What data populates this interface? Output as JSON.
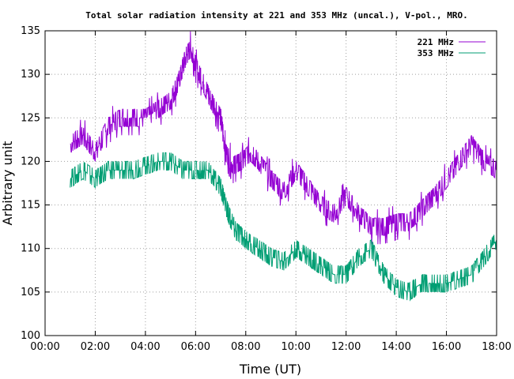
{
  "chart_data": {
    "type": "line",
    "title": "Total solar radiation intensity at 221 and 353 MHz (uncal.), V-pol., MRO.",
    "xlabel": "Time (UT)",
    "ylabel": "Arbitrary unit",
    "xlim": [
      0,
      18
    ],
    "ylim": [
      100,
      135
    ],
    "x_ticks": [
      "00:00",
      "02:00",
      "04:00",
      "06:00",
      "08:00",
      "10:00",
      "12:00",
      "14:00",
      "16:00",
      "18:00"
    ],
    "y_ticks": [
      100,
      105,
      110,
      115,
      120,
      125,
      130,
      135
    ],
    "grid": true,
    "legend_position": "top-right",
    "series": [
      {
        "name": "221 MHz",
        "color": "#9400d3",
        "x": [
          1.0,
          1.5,
          2.0,
          2.5,
          3.0,
          3.5,
          4.0,
          4.5,
          5.0,
          5.3,
          5.6,
          5.8,
          6.0,
          6.3,
          6.6,
          7.0,
          7.2,
          7.5,
          7.8,
          8.2,
          8.5,
          9.0,
          9.5,
          10.0,
          10.5,
          11.0,
          11.5,
          12.0,
          12.5,
          13.0,
          13.5,
          14.0,
          14.5,
          15.0,
          15.5,
          16.0,
          16.5,
          17.0,
          17.5,
          18.0
        ],
        "y": [
          122,
          123,
          121,
          124,
          125,
          125,
          125,
          126,
          127,
          129,
          132,
          133,
          131,
          129,
          127,
          125,
          121,
          119.5,
          120,
          121,
          120,
          118,
          116.5,
          119,
          117,
          115,
          114,
          116,
          114,
          112.5,
          112.5,
          113,
          113,
          114.5,
          116,
          118,
          120,
          122,
          120,
          119
        ]
      },
      {
        "name": "353 MHz",
        "color": "#009e73",
        "x": [
          1.0,
          1.5,
          2.0,
          2.5,
          3.0,
          3.5,
          4.0,
          4.5,
          5.0,
          5.5,
          6.0,
          6.5,
          7.0,
          7.3,
          7.6,
          8.0,
          8.5,
          9.0,
          9.5,
          10.0,
          10.5,
          11.0,
          11.5,
          12.0,
          12.5,
          13.0,
          13.5,
          14.0,
          14.5,
          15.0,
          15.5,
          16.0,
          16.5,
          17.0,
          17.5,
          18.0
        ],
        "y": [
          118,
          119,
          118,
          119,
          119,
          119,
          119.5,
          120,
          120,
          119,
          119,
          119,
          117,
          114,
          112,
          111,
          110,
          109,
          108.5,
          110,
          109,
          108,
          107,
          107,
          109,
          110,
          107,
          105.5,
          105,
          106,
          106,
          106,
          106.5,
          107,
          109,
          111
        ]
      }
    ]
  }
}
